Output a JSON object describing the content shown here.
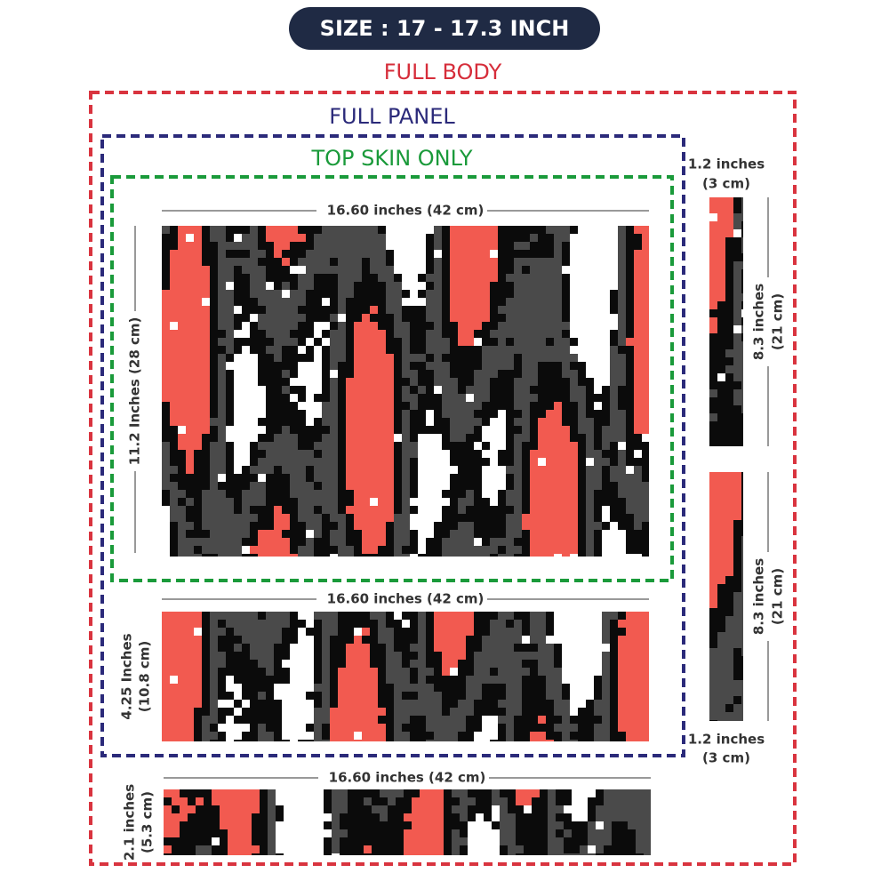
{
  "badge": "SIZE : 17 - 17.3 INCH",
  "frames": {
    "full_body": "FULL BODY",
    "full_panel": "FULL PANEL",
    "top_skin": "TOP SKIN ONLY"
  },
  "top_panel": {
    "width": "16.60 inches (42 cm)",
    "height": "11.2 Inches (28 cm)"
  },
  "bottom_panel": {
    "width": "16.60 inches (42 cm)",
    "height": [
      "4.25 Inches",
      "(10.8 cm)"
    ]
  },
  "front_strip": {
    "width": "16.60 inches (42 cm)",
    "height": [
      "2.1 inches",
      "(5.3 cm)"
    ]
  },
  "side_strips": [
    {
      "width": [
        "1.2 inches",
        "(3 cm)"
      ],
      "height": [
        "8.3 inches",
        "(21 cm)"
      ]
    },
    {
      "width": [
        "1.2 inches",
        "(3 cm)"
      ],
      "height": [
        "8.3 inches",
        "(21 cm)"
      ]
    }
  ]
}
